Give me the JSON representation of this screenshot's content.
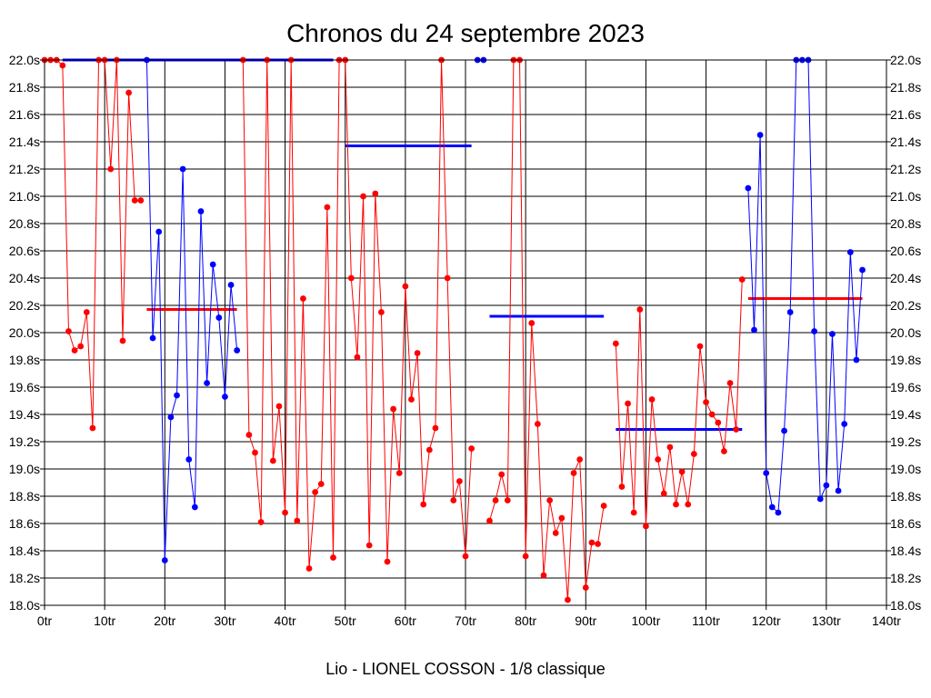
{
  "chart_data": {
    "type": "line",
    "title": "Chronos du 24 septembre 2023",
    "subtitle": "Lio - LIONEL COSSON - 1/8 classique",
    "xlim": [
      0,
      140
    ],
    "ylim": [
      18.0,
      22.0
    ],
    "grid": true,
    "x_ticks": [
      0,
      10,
      20,
      30,
      40,
      50,
      60,
      70,
      80,
      90,
      100,
      110,
      120,
      130,
      140
    ],
    "x_tick_labels": [
      "0tr",
      "10tr",
      "20tr",
      "30tr",
      "40tr",
      "50tr",
      "60tr",
      "70tr",
      "80tr",
      "90tr",
      "100tr",
      "110tr",
      "120tr",
      "130tr",
      "140tr"
    ],
    "y_ticks": [
      18.0,
      18.2,
      18.4,
      18.6,
      18.8,
      19.0,
      19.2,
      19.4,
      19.6,
      19.8,
      20.0,
      20.2,
      20.4,
      20.6,
      20.8,
      21.0,
      21.2,
      21.4,
      21.6,
      21.8,
      22.0
    ],
    "y_tick_labels": [
      "18.0s",
      "18.2s",
      "18.4s",
      "18.6s",
      "18.8s",
      "19.0s",
      "19.2s",
      "19.4s",
      "19.6s",
      "19.8s",
      "20.0s",
      "20.2s",
      "20.4s",
      "20.6s",
      "20.8s",
      "21.0s",
      "21.2s",
      "21.4s",
      "21.6s",
      "21.8s",
      "22.0s"
    ],
    "colors": {
      "red": "#ff0000",
      "blue": "#0000ff"
    },
    "segments": [
      {
        "color": "red",
        "x": [
          0,
          1,
          2,
          3,
          4,
          5,
          6,
          7,
          8,
          9,
          10,
          11,
          12,
          13,
          14,
          15,
          16
        ],
        "y": [
          22.0,
          22.0,
          22.0,
          21.96,
          20.01,
          19.87,
          19.9,
          20.15,
          19.3,
          22.0,
          22.0,
          21.2,
          22.0,
          19.94,
          21.76,
          20.97,
          20.97
        ]
      },
      {
        "color": "blue",
        "x": [
          17,
          18,
          19,
          20,
          21,
          22,
          23,
          24,
          25,
          26,
          27,
          28,
          29,
          30,
          31,
          32
        ],
        "y": [
          22.0,
          19.96,
          20.74,
          18.33,
          19.38,
          19.54,
          21.2,
          19.07,
          18.72,
          20.89,
          19.63,
          20.5,
          20.11,
          19.53,
          20.35,
          19.87
        ]
      },
      {
        "color": "red",
        "x": [
          33,
          34,
          35,
          36,
          37,
          38,
          39,
          40,
          41,
          42,
          43,
          44,
          45,
          46,
          47,
          48,
          49,
          50,
          51,
          52,
          53,
          54,
          55,
          56,
          57,
          58,
          59,
          60,
          61,
          62,
          63,
          64,
          65,
          66,
          67,
          68,
          69,
          70,
          71
        ],
        "y": [
          22.0,
          19.25,
          19.12,
          18.61,
          22.0,
          19.06,
          19.46,
          18.68,
          22.0,
          18.62,
          20.25,
          18.27,
          18.83,
          18.89,
          20.92,
          18.35,
          22.0,
          22.0,
          20.4,
          19.82,
          21.0,
          18.44,
          21.02,
          20.15,
          18.32,
          19.44,
          18.97,
          20.34,
          19.51,
          19.85,
          18.74,
          19.14,
          19.3,
          22.0,
          20.4,
          18.77,
          18.91,
          18.36,
          19.15
        ]
      },
      {
        "color": "blue",
        "x": [
          72,
          73
        ],
        "y": [
          22.0,
          22.0
        ]
      },
      {
        "color": "red",
        "x": [
          74,
          75,
          76,
          77,
          78,
          79,
          80,
          81,
          82,
          83,
          84,
          85,
          86,
          87,
          88,
          89,
          90,
          91,
          92,
          93
        ],
        "y": [
          18.62,
          18.77,
          18.96,
          18.77,
          22.0,
          22.0,
          18.36,
          20.07,
          19.33,
          18.22,
          18.77,
          18.53,
          18.64,
          18.04,
          18.97,
          19.07,
          18.13,
          18.46,
          18.45,
          18.73
        ]
      },
      {
        "color": "red",
        "x": [
          95,
          96,
          97,
          98,
          99,
          100,
          101,
          102,
          103,
          104,
          105,
          106,
          107,
          108,
          109,
          110,
          111,
          112,
          113,
          114,
          115,
          116
        ],
        "y": [
          19.92,
          18.87,
          19.48,
          18.68,
          20.17,
          18.58,
          19.51,
          19.07,
          18.82,
          19.16,
          18.74,
          18.98,
          18.74,
          19.11,
          19.9,
          19.49,
          19.4,
          19.34,
          19.13,
          19.63,
          19.29,
          20.39
        ]
      },
      {
        "color": "blue",
        "x": [
          117,
          118,
          119,
          120,
          121,
          122,
          123,
          124,
          125,
          126,
          127,
          128,
          129,
          130,
          131,
          132,
          133,
          134,
          135,
          136
        ],
        "y": [
          21.06,
          20.02,
          21.45,
          18.97,
          18.72,
          18.68,
          19.28,
          20.15,
          22.0,
          22.0,
          22.0,
          20.01,
          18.78,
          18.88,
          19.99,
          18.84,
          19.33,
          20.59,
          19.8,
          20.46
        ]
      }
    ],
    "average_lines": [
      {
        "color": "blue",
        "x": [
          3,
          48
        ],
        "y": 22.0
      },
      {
        "color": "red",
        "x": [
          17,
          32
        ],
        "y": 20.17
      },
      {
        "color": "blue",
        "x": [
          50,
          71
        ],
        "y": 21.37
      },
      {
        "color": "blue",
        "x": [
          74,
          93
        ],
        "y": 20.12
      },
      {
        "color": "blue",
        "x": [
          95,
          116
        ],
        "y": 19.29
      },
      {
        "color": "red",
        "x": [
          117,
          136
        ],
        "y": 20.25
      }
    ]
  }
}
